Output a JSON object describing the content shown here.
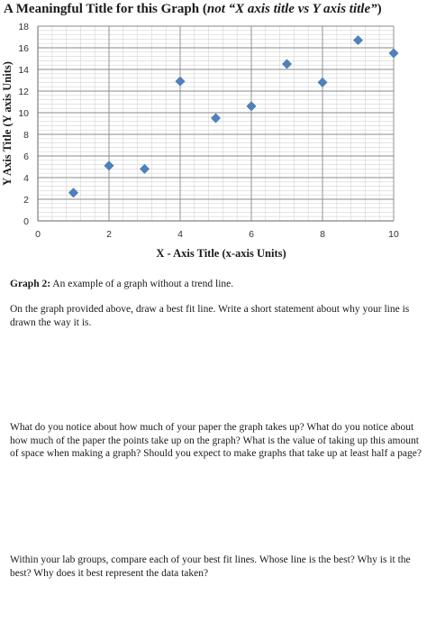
{
  "chart_data": {
    "type": "scatter",
    "title_main": "A Meaningful Title for this Graph (",
    "title_italic": "not “X axis title vs Y axis title”",
    "title_end": ")",
    "xlabel": "X - Axis Title (x-axis Units)",
    "ylabel": "Y Axis Title (Y axis Units)",
    "xlim": [
      0,
      10
    ],
    "ylim": [
      0,
      18
    ],
    "x_ticks": [
      0,
      2,
      4,
      6,
      8,
      10
    ],
    "y_ticks": [
      0,
      2,
      4,
      6,
      8,
      10,
      12,
      14,
      16,
      18
    ],
    "grid": true,
    "marker": "diamond",
    "marker_color": "#4f81bd",
    "points": [
      {
        "x": 1,
        "y": 2.6
      },
      {
        "x": 2,
        "y": 5.1
      },
      {
        "x": 3,
        "y": 4.8
      },
      {
        "x": 4,
        "y": 12.9
      },
      {
        "x": 5,
        "y": 9.5
      },
      {
        "x": 6,
        "y": 10.6
      },
      {
        "x": 7,
        "y": 14.5
      },
      {
        "x": 8,
        "y": 12.8
      },
      {
        "x": 9,
        "y": 16.7
      },
      {
        "x": 10,
        "y": 15.5
      }
    ]
  },
  "caption": {
    "label": "Graph 2:",
    "text": " An example of a graph without a trend line."
  },
  "questions": [
    "On the graph provided above, draw a best fit line. Write a short statement about why your line is drawn the way it is.",
    "What do you notice about how much of your paper the graph takes up? What do you notice about how much of the paper the points take up on the graph? What is the value of taking up this amount of space when making a graph? Should you expect to make graphs that take up at least half a page?",
    "Within your lab groups, compare each of your best fit lines. Whose line is the best? Why is it the best? Why does it best represent the data taken?"
  ]
}
